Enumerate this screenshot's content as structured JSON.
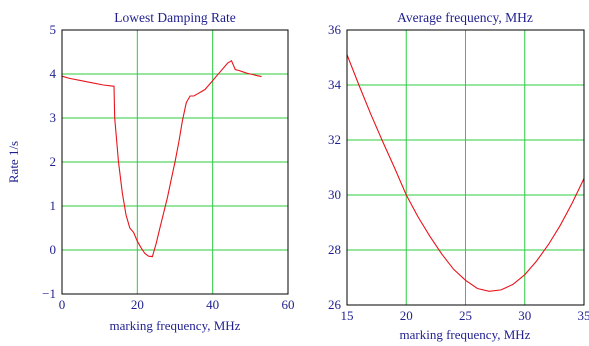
{
  "chart_data": [
    {
      "type": "line",
      "title": "Lowest Damping Rate",
      "xlabel": "marking frequency, MHz",
      "ylabel": "Rate 1/s",
      "xlim": [
        0,
        60
      ],
      "ylim": [
        -1,
        5
      ],
      "xticks": [
        0,
        20,
        40,
        60
      ],
      "yticks": [
        -1,
        0,
        1,
        2,
        3,
        4,
        5
      ],
      "grid": true,
      "line_color": "#e8141b",
      "grid_color": "#2ecc40",
      "series": [
        {
          "x": [
            0,
            2,
            5,
            8,
            11,
            13.8,
            14,
            15,
            16,
            17,
            18,
            19,
            20,
            21,
            22,
            23,
            24,
            25,
            26,
            27,
            28,
            29,
            30,
            31,
            32,
            33,
            34,
            35,
            36,
            37,
            38,
            39,
            40,
            41,
            42,
            43,
            44,
            45,
            46,
            47,
            48,
            49,
            50,
            51,
            52,
            53
          ],
          "y": [
            3.95,
            3.9,
            3.85,
            3.8,
            3.75,
            3.72,
            3.0,
            2.0,
            1.3,
            0.8,
            0.5,
            0.4,
            0.2,
            0.05,
            -0.08,
            -0.14,
            -0.15,
            0.15,
            0.5,
            0.85,
            1.2,
            1.6,
            2.0,
            2.45,
            2.95,
            3.35,
            3.5,
            3.5,
            3.55,
            3.6,
            3.65,
            3.75,
            3.85,
            3.95,
            4.05,
            4.15,
            4.25,
            4.3,
            4.1,
            4.08,
            4.05,
            4.02,
            4.0,
            3.98,
            3.96,
            3.94
          ]
        }
      ]
    },
    {
      "type": "line",
      "title": "Average frequency, MHz",
      "xlabel": "marking frequency, MHz",
      "ylabel": "",
      "xlim": [
        15,
        35
      ],
      "ylim": [
        26,
        36
      ],
      "xticks": [
        15,
        20,
        25,
        30,
        35
      ],
      "yticks": [
        26,
        28,
        30,
        32,
        34,
        36
      ],
      "grid": true,
      "line_color": "#e8141b",
      "grid_color": "#2ecc40",
      "series": [
        {
          "x": [
            15,
            16,
            17,
            18,
            19,
            20,
            21,
            22,
            23,
            24,
            25,
            26,
            27,
            28,
            29,
            30,
            31,
            32,
            33,
            34,
            35
          ],
          "y": [
            35.1,
            34.0,
            32.95,
            31.95,
            31.0,
            30.0,
            29.2,
            28.5,
            27.85,
            27.3,
            26.9,
            26.6,
            26.5,
            26.55,
            26.75,
            27.1,
            27.6,
            28.2,
            28.9,
            29.7,
            30.6
          ]
        }
      ]
    }
  ]
}
